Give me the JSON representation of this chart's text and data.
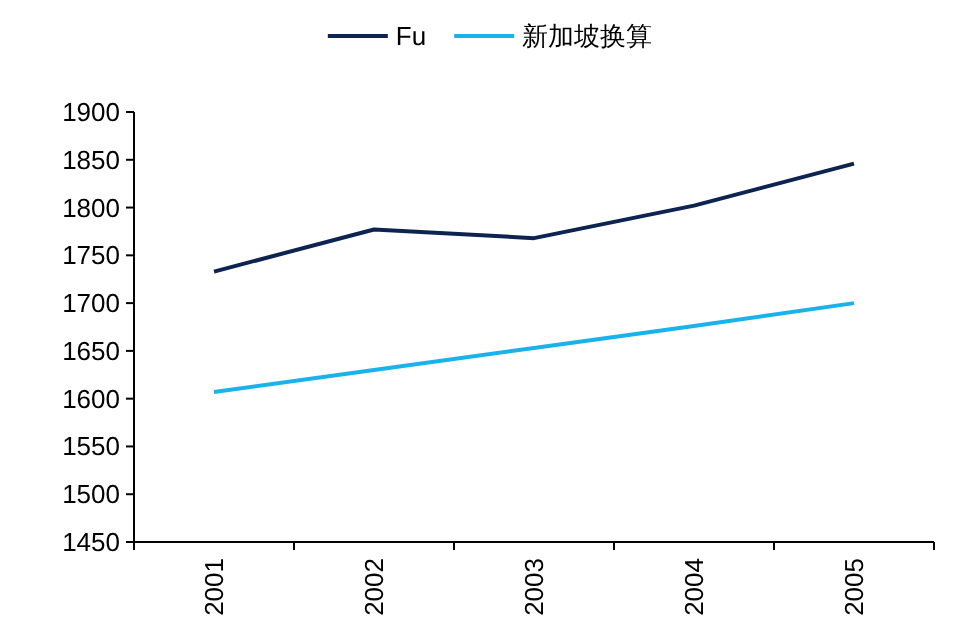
{
  "chart_data": {
    "type": "line",
    "categories": [
      "2001",
      "2002",
      "2003",
      "2004",
      "2005"
    ],
    "series": [
      {
        "name": "Fu",
        "color": "#0d2352",
        "values": [
          1733,
          1777,
          1768,
          1802,
          1846
        ]
      },
      {
        "name": "新加坡换算",
        "color": "#1ab2ea",
        "values": [
          1607,
          1630,
          1653,
          1676,
          1700
        ]
      }
    ],
    "ylim": [
      1450,
      1900
    ],
    "yticks": [
      1450,
      1500,
      1550,
      1600,
      1650,
      1700,
      1750,
      1800,
      1850,
      1900
    ],
    "legend": "top",
    "grid": false,
    "marker": "none",
    "line_style": "solid"
  }
}
